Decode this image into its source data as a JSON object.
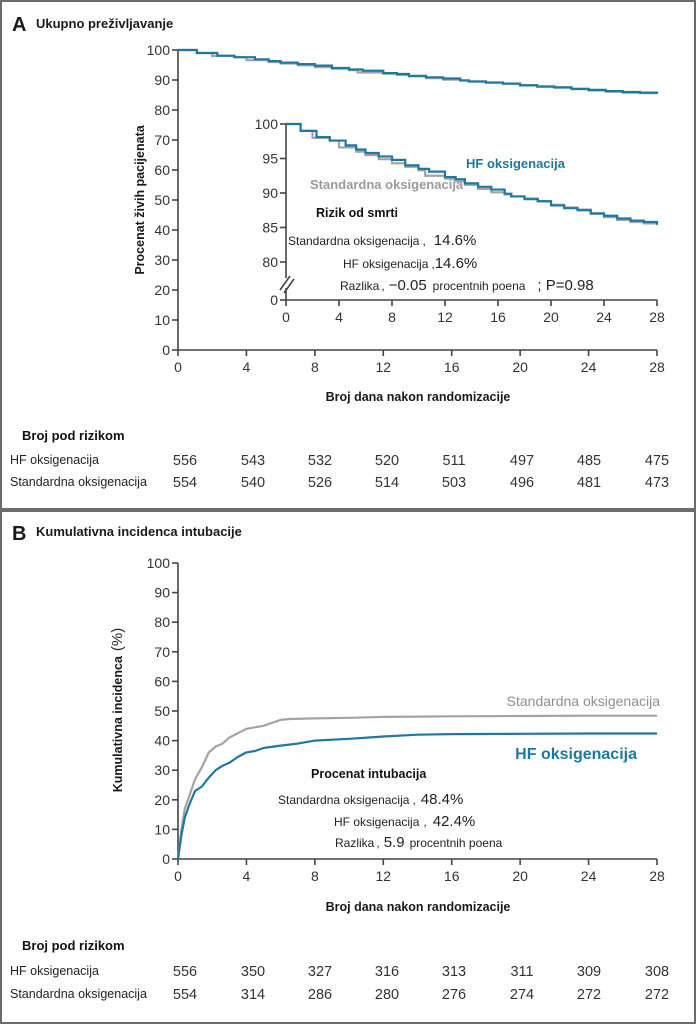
{
  "chart_data": [
    {
      "id": "A",
      "type": "line",
      "panel_letter": "A",
      "title": "Ukupno preživljavanje",
      "xlabel": "Broj dana nakon randomizacije",
      "ylabel": "Procenat živih pacijenata",
      "xlim": [
        0,
        28
      ],
      "ylim": [
        0,
        100
      ],
      "x_ticks": [
        0,
        4,
        8,
        12,
        16,
        20,
        24,
        28
      ],
      "y_ticks": [
        0,
        10,
        20,
        30,
        40,
        50,
        60,
        70,
        80,
        90,
        100
      ],
      "grid": false,
      "series": [
        {
          "name": "HF oksigenacija",
          "color": "#1f78a0",
          "step": true,
          "x": [
            0,
            1.1,
            2.3,
            3.3,
            4.5,
            5.3,
            6.0,
            7.0,
            8.0,
            9.0,
            10.0,
            10.8,
            12.0,
            12.8,
            13.5,
            14.5,
            15.5,
            16.5,
            17.0,
            18.0,
            19.0,
            20.0,
            21.0,
            22.0,
            23.0,
            24.0,
            25.0,
            26.0,
            27.0,
            28.0
          ],
          "y": [
            100,
            99.0,
            98.1,
            97.6,
            96.9,
            96.3,
            95.8,
            95.3,
            94.8,
            94.0,
            93.5,
            93.1,
            92.3,
            92.0,
            91.4,
            90.9,
            90.5,
            89.9,
            89.5,
            89.1,
            88.8,
            88.2,
            87.8,
            87.5,
            87.0,
            86.7,
            86.3,
            86.0,
            85.8,
            85.4
          ]
        },
        {
          "name": "Standardna oksigenacija",
          "color": "#a3a3a3",
          "step": true,
          "x": [
            0,
            1.1,
            2.0,
            3.3,
            4.0,
            5.3,
            6.0,
            7.0,
            8.0,
            9.0,
            10.0,
            10.5,
            12.0,
            12.8,
            13.5,
            14.5,
            15.5,
            16.5,
            17.0,
            18.0,
            19.0,
            20.0,
            21.0,
            22.0,
            23.0,
            24.0,
            25.0,
            26.0,
            27.0,
            28.0
          ],
          "y": [
            100,
            99.0,
            98.0,
            97.6,
            96.6,
            96.0,
            95.5,
            94.9,
            94.3,
            93.8,
            93.3,
            92.5,
            92.1,
            91.7,
            91.2,
            90.6,
            90.1,
            89.8,
            89.5,
            89.2,
            88.8,
            88.3,
            87.9,
            87.6,
            87.1,
            86.5,
            86.1,
            85.8,
            85.6,
            85.4
          ]
        }
      ],
      "inset": {
        "xlim": [
          0,
          28
        ],
        "ylim_display": [
          80,
          100
        ],
        "y_ticks": [
          0,
          80,
          85,
          90,
          95,
          100
        ],
        "x_ticks": [
          0,
          4,
          8,
          12,
          16,
          20,
          24,
          28
        ],
        "axis_break": true,
        "label_hf": "HF oksigenacija",
        "label_std": "Standardna oksigenacija"
      },
      "annotation": {
        "title": "Rizik od smrti",
        "lines": [
          {
            "label": "Standardna oksigenacija",
            "sep": ",",
            "value": "14.6%"
          },
          {
            "label": "HF oksigenacija",
            "sep": ",",
            "value": "14.6%"
          },
          {
            "label": "Razlika",
            "sep": ",",
            "value": "−0.05",
            "suffix": "procentnih poena",
            "extra": "; P=0.98"
          }
        ]
      },
      "risk_table": {
        "title": "Broj pod rizikom",
        "rows": [
          {
            "label": "HF oksigenacija",
            "values": [
              556,
              543,
              532,
              520,
              511,
              497,
              485,
              475
            ]
          },
          {
            "label": "Standardna oksigenacija",
            "values": [
              554,
              540,
              526,
              514,
              503,
              496,
              481,
              473
            ]
          }
        ]
      }
    },
    {
      "id": "B",
      "type": "line",
      "panel_letter": "B",
      "title": "Kumulativna incidenca intubacije",
      "xlabel": "Broj dana nakon randomizacije",
      "ylabel": "Kumulativna incidenca",
      "ylabel_unit": "(%)",
      "xlim": [
        0,
        28
      ],
      "ylim": [
        0,
        100
      ],
      "x_ticks": [
        0,
        4,
        8,
        12,
        16,
        20,
        24,
        28
      ],
      "y_ticks": [
        0,
        10,
        20,
        30,
        40,
        50,
        60,
        70,
        80,
        90,
        100
      ],
      "grid": false,
      "series": [
        {
          "name": "Standardna oksigenacija",
          "color": "#a3a3a3",
          "x": [
            0,
            0.2,
            0.4,
            0.7,
            1.0,
            1.4,
            1.8,
            2.2,
            2.6,
            3.0,
            3.5,
            4.0,
            4.5,
            5.0,
            5.5,
            6.0,
            6.5,
            8.0,
            10.0,
            12.0,
            14.0,
            16.0,
            20.0,
            24.0,
            28.0
          ],
          "y": [
            0,
            10,
            17,
            22,
            27,
            31,
            36,
            38,
            39,
            41,
            42.5,
            44,
            44.5,
            45,
            46,
            47,
            47.3,
            47.5,
            47.7,
            48,
            48.1,
            48.2,
            48.3,
            48.4,
            48.4
          ],
          "label": "Standardna oksigenacija"
        },
        {
          "name": "HF oksigenacija",
          "color": "#1f78a0",
          "x": [
            0,
            0.2,
            0.4,
            0.7,
            1.0,
            1.4,
            1.8,
            2.2,
            2.6,
            3.0,
            3.5,
            4.0,
            4.5,
            5.0,
            6.0,
            7.0,
            8.0,
            10.0,
            12.0,
            14.0,
            16.0,
            20.0,
            24.0,
            28.0
          ],
          "y": [
            0,
            8,
            14,
            19,
            23,
            24.5,
            27.5,
            30,
            31.5,
            32.5,
            34.5,
            36,
            36.5,
            37.5,
            38.3,
            39,
            40,
            40.6,
            41.4,
            42,
            42.2,
            42.3,
            42.4,
            42.4
          ],
          "label": "HF oksigenacija"
        }
      ],
      "annotation": {
        "title": "Procenat intubacija",
        "lines": [
          {
            "label": "Standardna oksigenacija",
            "sep": ",",
            "value": "48.4%"
          },
          {
            "label": "HF oksigenacija",
            "sep": ",",
            "value": "42.4%"
          },
          {
            "label": "Razlika",
            "sep": ",",
            "value": "5.9",
            "suffix": "procentnih poena"
          }
        ]
      },
      "risk_table": {
        "title": "Broj pod rizikom",
        "rows": [
          {
            "label": "HF oksigenacija",
            "values": [
              556,
              350,
              327,
              316,
              313,
              311,
              309,
              308
            ]
          },
          {
            "label": "Standardna oksigenacija",
            "values": [
              554,
              314,
              286,
              280,
              276,
              274,
              272,
              272
            ]
          }
        ]
      }
    }
  ]
}
